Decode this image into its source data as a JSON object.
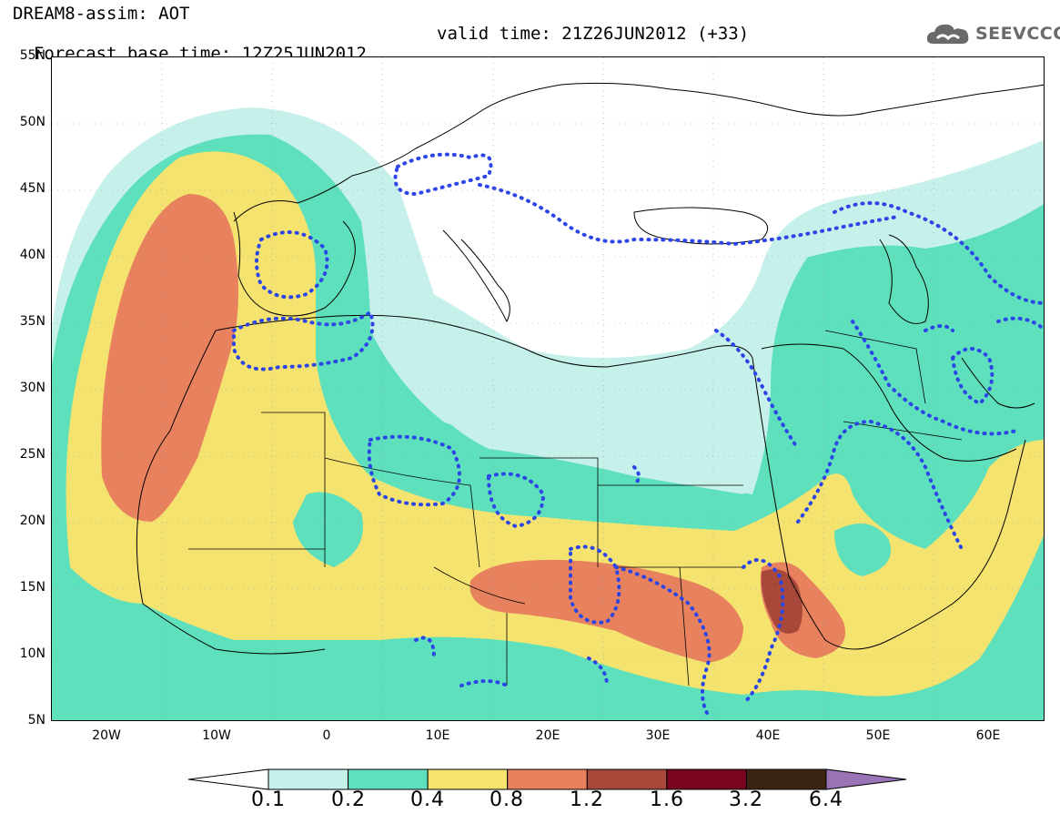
{
  "header": {
    "title": "DREAM8-assim: AOT",
    "base_time": "Forecast base time: 12Z25JUN2012",
    "valid_time": "valid time: 21Z26JUN2012 (+33)"
  },
  "logo": {
    "text": "SEEVCCC",
    "icon": "cloud-icon"
  },
  "axes": {
    "lat_labels": [
      "55N",
      "50N",
      "45N",
      "40N",
      "35N",
      "30N",
      "25N",
      "20N",
      "15N",
      "10N",
      "5N"
    ],
    "lon_labels": [
      "20W",
      "10W",
      "0",
      "10E",
      "20E",
      "30E",
      "40E",
      "50E",
      "60E"
    ]
  },
  "legend": {
    "labels": [
      "0.1",
      "0.2",
      "0.4",
      "0.8",
      "1.2",
      "1.6",
      "3.2",
      "6.4"
    ],
    "colors": [
      "#c6f0ea",
      "#5ee0bc",
      "#f5e36f",
      "#e8825e",
      "#a8483a",
      "#780420",
      "#3b2412",
      "#9b74b5"
    ]
  },
  "map_colors": {
    "land_mask": "#ffffff",
    "coast": "#000000",
    "precip": "#2b45e6"
  }
}
